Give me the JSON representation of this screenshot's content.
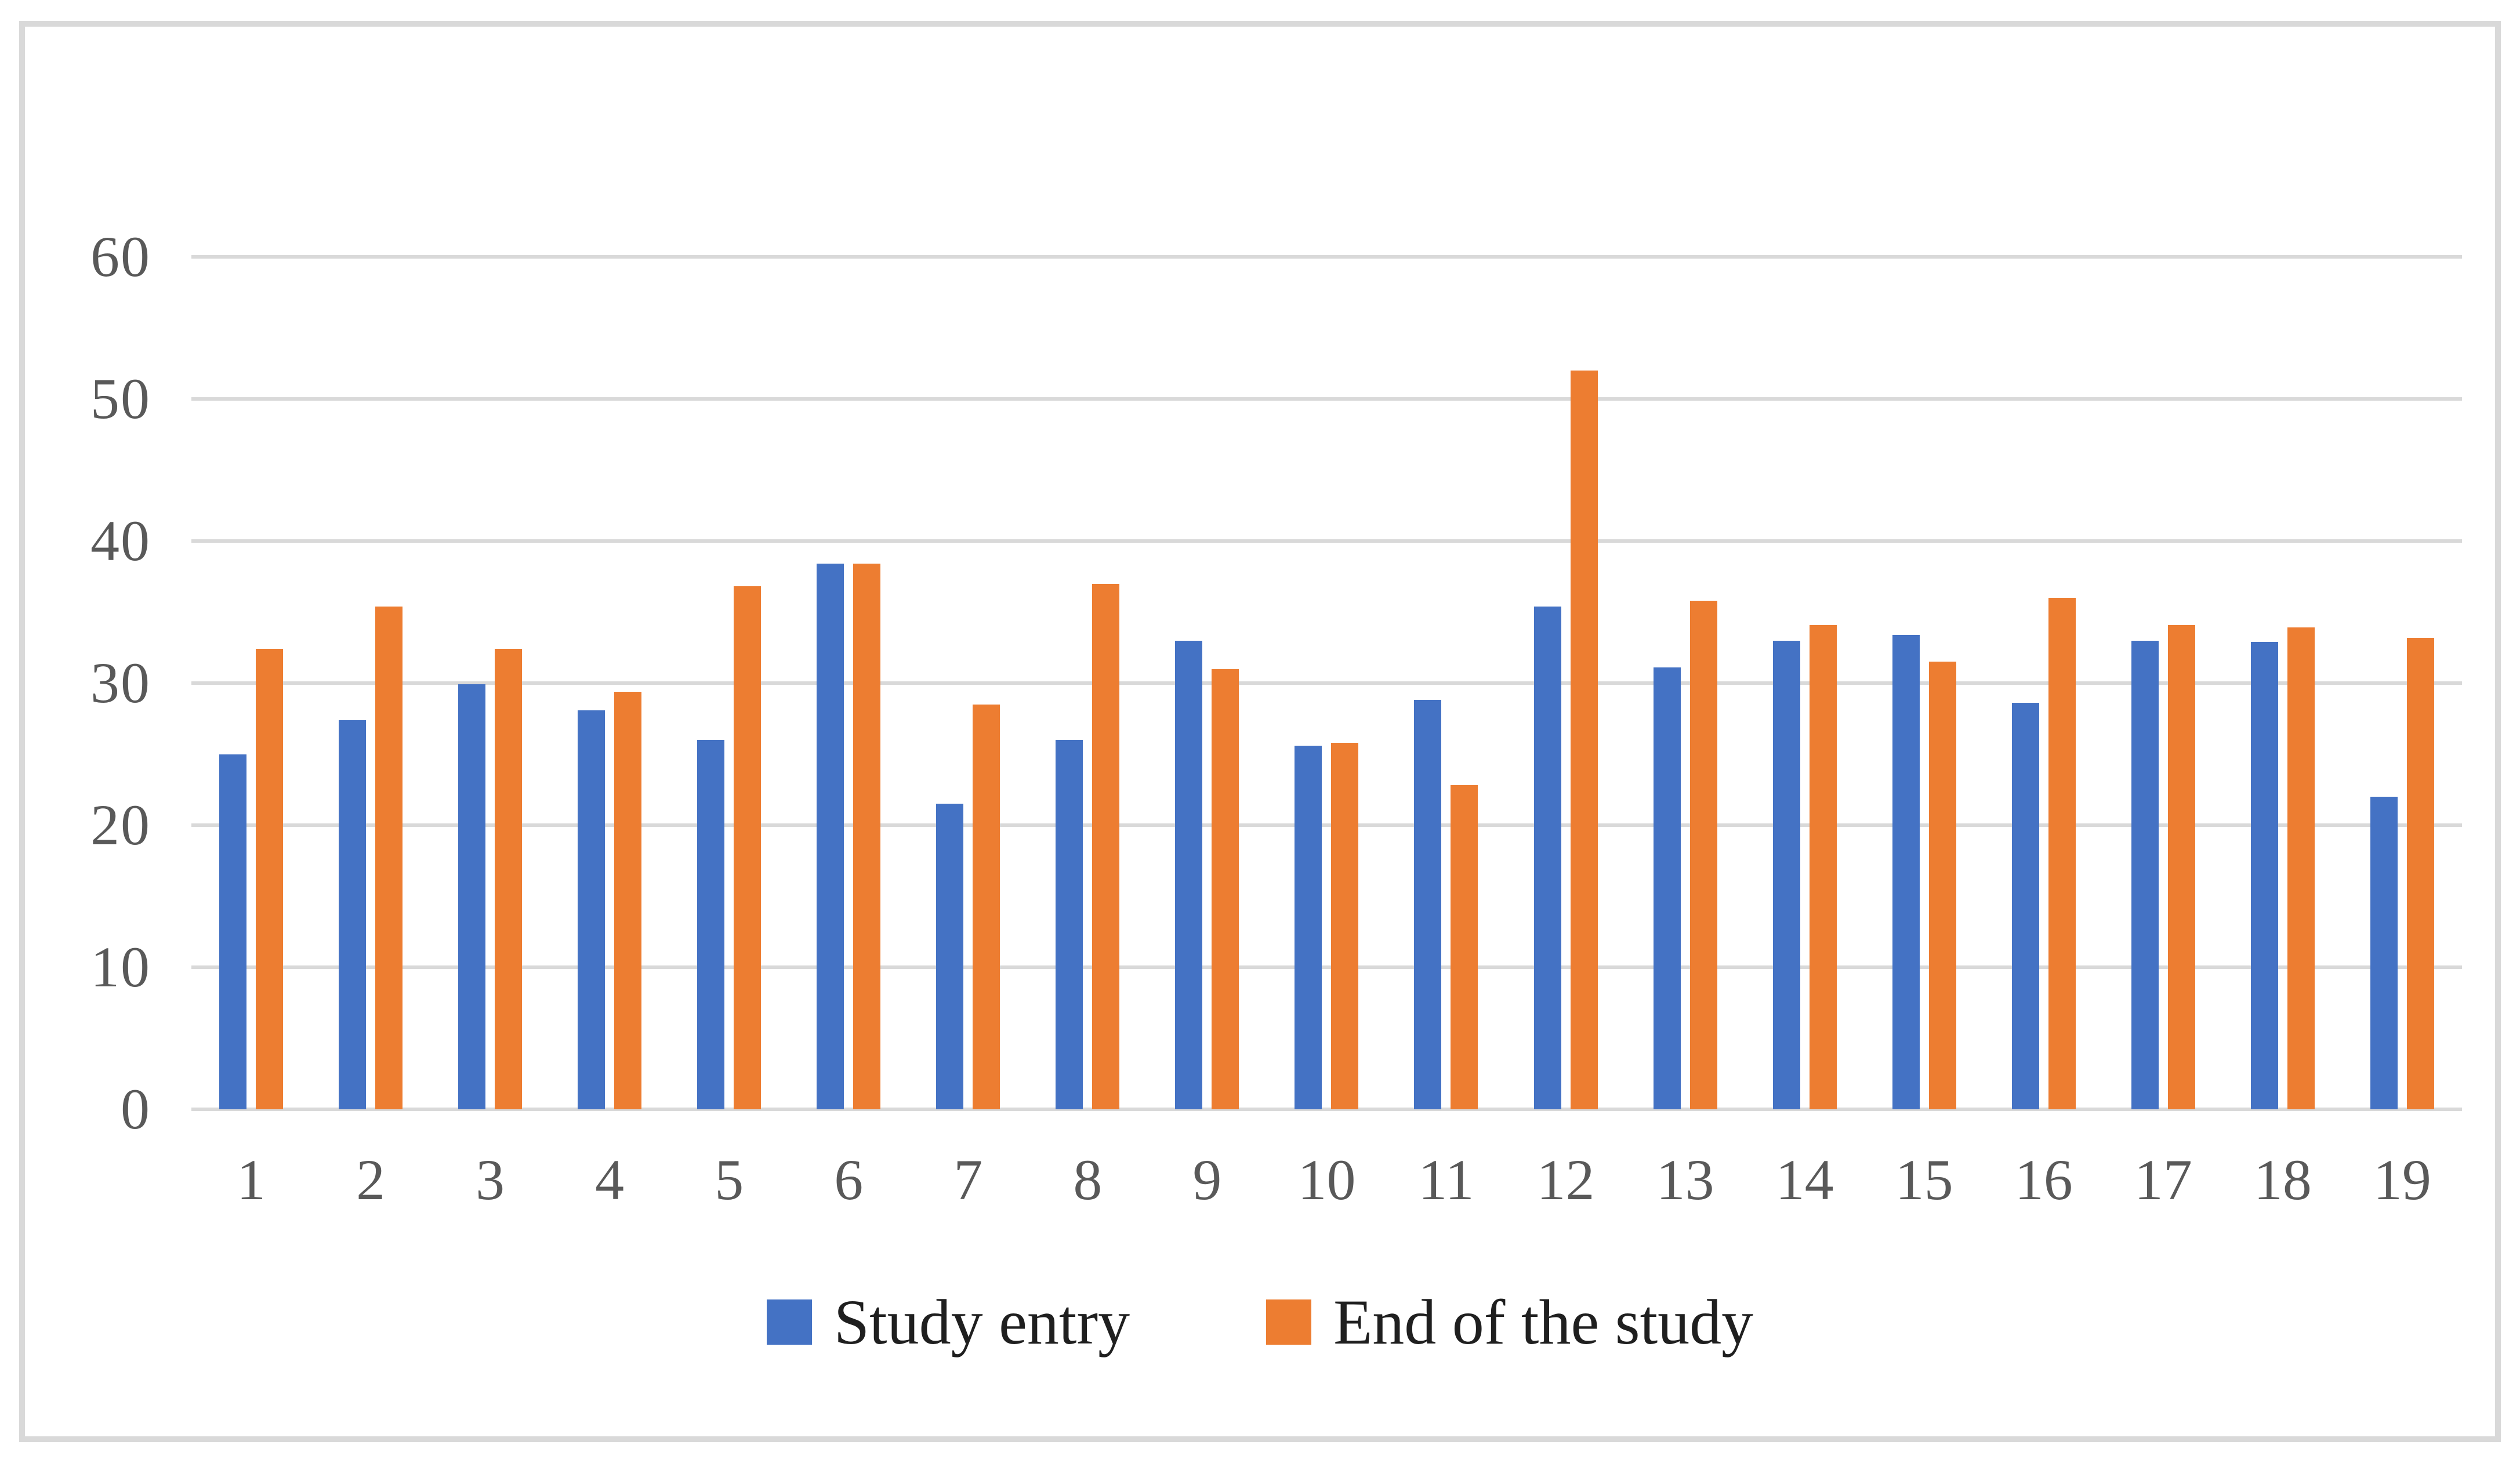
{
  "chart_data": {
    "type": "bar",
    "title": "",
    "xlabel": "",
    "ylabel": "",
    "categories": [
      "1",
      "2",
      "3",
      "4",
      "5",
      "6",
      "7",
      "8",
      "9",
      "10",
      "11",
      "12",
      "13",
      "14",
      "15",
      "16",
      "17",
      "18",
      "19"
    ],
    "series": [
      {
        "name": "Study entry",
        "color": "#4472C4",
        "values": [
          25.0,
          27.4,
          29.9,
          28.1,
          26.0,
          38.4,
          21.5,
          26.0,
          33.0,
          25.6,
          28.8,
          35.4,
          31.1,
          33.0,
          33.4,
          28.6,
          33.0,
          32.9,
          22.0
        ]
      },
      {
        "name": "End of the study",
        "color": "#ED7D31",
        "values": [
          32.4,
          35.4,
          32.4,
          29.4,
          36.8,
          38.4,
          28.5,
          37.0,
          31.0,
          25.8,
          22.8,
          52.0,
          35.8,
          34.1,
          31.5,
          36.0,
          34.1,
          33.9,
          33.2
        ]
      }
    ],
    "ylim": [
      0,
      60
    ],
    "yticks": [
      0,
      10,
      20,
      30,
      40,
      50,
      60
    ],
    "grid": "horizontal",
    "gridline_color": "#d9d9d9",
    "axis_text_color": "#595959",
    "legend_position": "bottom",
    "frame_border_color": "#d9d9d9"
  }
}
